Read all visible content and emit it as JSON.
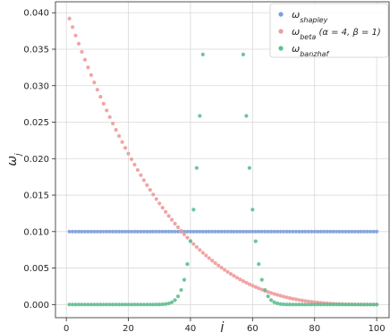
{
  "chart_data": {
    "type": "scatter",
    "xlabel": "j",
    "ylabel": "ω",
    "ylabel_sub": "j",
    "xlim": [
      -3.5,
      104
    ],
    "ylim": [
      -0.0018,
      0.0415
    ],
    "x_ticks": [
      0,
      20,
      40,
      60,
      80,
      100
    ],
    "y_ticks": [
      0.0,
      0.005,
      0.01,
      0.015,
      0.02,
      0.025,
      0.03,
      0.035,
      0.04
    ],
    "x_tick_labels": [
      "0",
      "20",
      "40",
      "60",
      "80",
      "100"
    ],
    "y_tick_labels": [
      "0.000",
      "0.005",
      "0.010",
      "0.015",
      "0.020",
      "0.025",
      "0.030",
      "0.035",
      "0.040"
    ],
    "grid": true,
    "legend_position": "top-right",
    "legend": [
      {
        "base": "ω",
        "sub": "shapley",
        "suffix": ""
      },
      {
        "base": "ω",
        "sub": "beta",
        "suffix": " (α = 4, β = 1)"
      },
      {
        "base": "ω",
        "sub": "banzhaf",
        "suffix": ""
      }
    ],
    "series": [
      {
        "key": "shapley",
        "color": "#7b9fd9",
        "rule": "constant",
        "value": 0.01,
        "x": [
          1,
          100
        ]
      },
      {
        "key": "beta",
        "color": "#ef9a9a",
        "rule": "w_j = 4*(100-j)^3/(99*100^3) (approx, sums to 1)",
        "x": [
          1,
          100
        ]
      },
      {
        "key": "banzhaf",
        "color": "#5fbf8f",
        "rule": "binomial(99, 0.5) at k = j-1",
        "x": [
          1,
          100
        ]
      }
    ]
  }
}
